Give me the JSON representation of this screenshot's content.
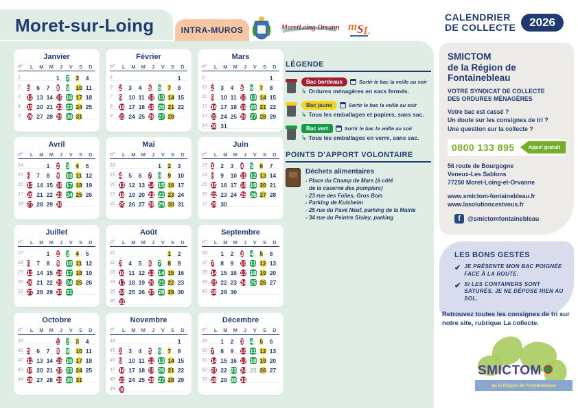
{
  "colors": {
    "navy": "#203a6f",
    "mint": "#dfede5",
    "bordeaux": "#9e1f35",
    "green": "#169c46",
    "yellow": "#f5d41f",
    "peach": "#f7c6a3",
    "lime": "#74ad27"
  },
  "header": {
    "city": "Moret-sur-Loing",
    "zone": "INTRA-MUROS"
  },
  "calendar": {
    "weekday_header": [
      "n°",
      "L",
      "M",
      "M",
      "J",
      "V",
      "S",
      "D"
    ],
    "months": [
      {
        "name": "Janvier",
        "weeks": [
          {
            "n": 1,
            "d": [
              "",
              "",
              "",
              "1",
              "2 g",
              "3 y",
              "4"
            ]
          },
          {
            "n": 2,
            "d": [
              "5 r",
              "6",
              "7",
              "8 r",
              "9 g",
              "10 y",
              "11"
            ]
          },
          {
            "n": 3,
            "d": [
              "12 r",
              "13",
              "14",
              "15 r",
              "16 g",
              "17 y",
              "18"
            ]
          },
          {
            "n": 4,
            "d": [
              "19 r",
              "20",
              "21",
              "22 r",
              "23 g",
              "24 y",
              "25"
            ]
          },
          {
            "n": 5,
            "d": [
              "26 r",
              "27",
              "28",
              "29 r",
              "30 g",
              "31 y",
              ""
            ]
          }
        ]
      },
      {
        "name": "Février",
        "weeks": [
          {
            "n": 5,
            "d": [
              "",
              "",
              "",
              "",
              "",
              "",
              "1"
            ]
          },
          {
            "n": 6,
            "d": [
              "2 r",
              "3",
              "4",
              "5 r",
              "6 g",
              "7 y",
              "8"
            ]
          },
          {
            "n": 7,
            "d": [
              "9 r",
              "10",
              "11",
              "12 r",
              "13 g",
              "14 y",
              "15"
            ]
          },
          {
            "n": 8,
            "d": [
              "16 r",
              "17",
              "18",
              "19 r",
              "20 g",
              "21 y",
              "22"
            ]
          },
          {
            "n": 9,
            "d": [
              "23 r",
              "24",
              "25",
              "26 r",
              "27 g",
              "28 y",
              ""
            ]
          }
        ]
      },
      {
        "name": "Mars",
        "weeks": [
          {
            "n": 9,
            "d": [
              "",
              "",
              "",
              "",
              "",
              "",
              "1"
            ]
          },
          {
            "n": 10,
            "d": [
              "2 r",
              "3",
              "4",
              "5 r",
              "6 g",
              "7 y",
              "8"
            ]
          },
          {
            "n": 11,
            "d": [
              "9 r",
              "10",
              "11",
              "12 r",
              "13 g",
              "14 y",
              "15"
            ]
          },
          {
            "n": 12,
            "d": [
              "16 r",
              "17",
              "18",
              "19 r",
              "20 g",
              "21 y",
              "22"
            ]
          },
          {
            "n": 13,
            "d": [
              "23 r",
              "24",
              "25",
              "26 r",
              "27 g",
              "28 y",
              "29"
            ]
          },
          {
            "n": 14,
            "d": [
              "30 r",
              "31",
              "",
              "",
              "",
              "",
              ""
            ]
          }
        ]
      },
      {
        "name": "Avril",
        "weeks": [
          {
            "n": 14,
            "d": [
              "",
              "",
              "1",
              "2 r",
              "3 g",
              "4 y",
              "5"
            ]
          },
          {
            "n": 15,
            "d": [
              "6 r",
              "7",
              "8",
              "9 r",
              "10 g",
              "11 y",
              "12"
            ]
          },
          {
            "n": 16,
            "d": [
              "13 r",
              "14",
              "15",
              "16 r",
              "17 g",
              "18 y",
              "19"
            ]
          },
          {
            "n": 17,
            "d": [
              "20 r",
              "21",
              "22",
              "23 r",
              "24 g",
              "25 y",
              "26"
            ]
          },
          {
            "n": 18,
            "d": [
              "27 r",
              "28",
              "29",
              "30 r",
              "",
              "",
              ""
            ]
          }
        ]
      },
      {
        "name": "Mai",
        "weeks": [
          {
            "n": 18,
            "d": [
              "",
              "",
              "",
              "",
              "1",
              "2 y",
              "3"
            ]
          },
          {
            "n": 19,
            "d": [
              "4 r",
              "5",
              "6",
              "7 r",
              "8 g",
              "9 y",
              "10"
            ]
          },
          {
            "n": 20,
            "d": [
              "11 r",
              "12",
              "13",
              "14 r",
              "15 g",
              "16 y",
              "17"
            ]
          },
          {
            "n": 21,
            "d": [
              "18 r",
              "19",
              "20",
              "21 r",
              "22 g",
              "23 y",
              "24"
            ]
          },
          {
            "n": 22,
            "d": [
              "25 r",
              "26",
              "27",
              "28 r",
              "29 g",
              "30 y",
              "31"
            ]
          }
        ]
      },
      {
        "name": "Juin",
        "weeks": [
          {
            "n": 23,
            "d": [
              "1 r",
              "2",
              "3",
              "4 r",
              "5 g",
              "6 y",
              "7"
            ]
          },
          {
            "n": 24,
            "d": [
              "8 r",
              "9",
              "10",
              "11 r",
              "12 g",
              "13 y",
              "14"
            ]
          },
          {
            "n": 25,
            "d": [
              "15 r",
              "16",
              "17",
              "18 r",
              "19 g",
              "20 y",
              "21"
            ]
          },
          {
            "n": 26,
            "d": [
              "22 r",
              "23",
              "24",
              "25 r",
              "26 g",
              "27 y",
              "28"
            ]
          },
          {
            "n": 27,
            "d": [
              "29 r",
              "30",
              "",
              "",
              "",
              "",
              ""
            ]
          }
        ]
      },
      {
        "name": "Juillet",
        "weeks": [
          {
            "n": 27,
            "d": [
              "",
              "",
              "1",
              "2 r",
              "3 g",
              "4 y",
              "5"
            ]
          },
          {
            "n": 28,
            "d": [
              "6 r",
              "7",
              "8",
              "9 r",
              "10 g",
              "11 y",
              "12"
            ]
          },
          {
            "n": 29,
            "d": [
              "13 r",
              "14",
              "15",
              "16 r",
              "17 g",
              "18 y",
              "19"
            ]
          },
          {
            "n": 30,
            "d": [
              "20 r",
              "21",
              "22",
              "23 r",
              "24 g",
              "25 y",
              "26"
            ]
          },
          {
            "n": 31,
            "d": [
              "27 r",
              "28",
              "29",
              "30 r",
              "31 g",
              "",
              ""
            ]
          }
        ]
      },
      {
        "name": "Août",
        "weeks": [
          {
            "n": 31,
            "d": [
              "",
              "",
              "",
              "",
              "",
              "1 y",
              "2"
            ]
          },
          {
            "n": 32,
            "d": [
              "3 r",
              "4",
              "5",
              "6 r",
              "7 g",
              "8 y",
              "9"
            ]
          },
          {
            "n": 33,
            "d": [
              "10 r",
              "11",
              "12",
              "13 r",
              "14 g",
              "15 y",
              "16"
            ]
          },
          {
            "n": 34,
            "d": [
              "17 r",
              "18",
              "19",
              "20 r",
              "21 g",
              "22 y",
              "23"
            ]
          },
          {
            "n": 35,
            "d": [
              "24 r",
              "25",
              "26",
              "27 r",
              "28 g",
              "29 y",
              "30"
            ]
          },
          {
            "n": 36,
            "d": [
              "31 r",
              "",
              "",
              "",
              "",
              "",
              ""
            ]
          }
        ]
      },
      {
        "name": "Septembre",
        "weeks": [
          {
            "n": 36,
            "d": [
              "",
              "1",
              "2",
              "3 r",
              "4 g",
              "5 y",
              "6"
            ]
          },
          {
            "n": 37,
            "d": [
              "7 r",
              "8",
              "9",
              "10 r",
              "11 g",
              "12 y",
              "13"
            ]
          },
          {
            "n": 38,
            "d": [
              "14 r",
              "15",
              "16",
              "17 r",
              "18 g",
              "19 y",
              "20"
            ]
          },
          {
            "n": 39,
            "d": [
              "21 r",
              "22",
              "23",
              "24 r",
              "25 g",
              "26 y",
              "27"
            ]
          },
          {
            "n": 40,
            "d": [
              "28 r",
              "29",
              "30",
              "",
              "",
              "",
              ""
            ]
          }
        ]
      },
      {
        "name": "Octobre",
        "weeks": [
          {
            "n": 40,
            "d": [
              "",
              "",
              "",
              "1 r",
              "2 g",
              "3 y",
              "4"
            ]
          },
          {
            "n": 41,
            "d": [
              "5 r",
              "6",
              "7",
              "8 r",
              "9 g",
              "10 y",
              "11"
            ]
          },
          {
            "n": 42,
            "d": [
              "12 r",
              "13",
              "14",
              "15 r",
              "16 g",
              "17 y",
              "18"
            ]
          },
          {
            "n": 43,
            "d": [
              "19 r",
              "20",
              "21",
              "22 r",
              "23 g",
              "24 y",
              "25"
            ]
          },
          {
            "n": 44,
            "d": [
              "26 r",
              "27",
              "28",
              "29 r",
              "30 g",
              "31 y",
              ""
            ]
          }
        ]
      },
      {
        "name": "Novembre",
        "weeks": [
          {
            "n": 44,
            "d": [
              "",
              "",
              "",
              "",
              "",
              "",
              "1"
            ]
          },
          {
            "n": 45,
            "d": [
              "2 r",
              "3",
              "4",
              "5 r",
              "6 g",
              "7 y",
              "8"
            ]
          },
          {
            "n": 46,
            "d": [
              "9 r",
              "10",
              "11",
              "12 r",
              "13 g",
              "14 y",
              "15"
            ]
          },
          {
            "n": 47,
            "d": [
              "16 r",
              "17",
              "18",
              "19 r",
              "20 g",
              "21 y",
              "22"
            ]
          },
          {
            "n": 48,
            "d": [
              "23 r",
              "24",
              "25",
              "26 r",
              "27 g",
              "28 y",
              "29"
            ]
          },
          {
            "n": 49,
            "d": [
              "30 r",
              "",
              "",
              "",
              "",
              "",
              ""
            ]
          }
        ]
      },
      {
        "name": "Décembre",
        "weeks": [
          {
            "n": 49,
            "d": [
              "",
              "1",
              "2",
              "3 r",
              "4 g",
              "5 y",
              "6"
            ]
          },
          {
            "n": 50,
            "d": [
              "7 r",
              "8",
              "9",
              "10 r",
              "11 g",
              "12 y",
              "13"
            ]
          },
          {
            "n": 51,
            "d": [
              "14 r",
              "15",
              "16",
              "17 r",
              "18 g",
              "19 y",
              "20"
            ]
          },
          {
            "n": 52,
            "d": [
              "21 r",
              "22",
              "23 g",
              "24 r",
              "25 m",
              "26 y",
              "27"
            ]
          },
          {
            "n": 53,
            "d": [
              "28 r",
              "29",
              "30 g",
              "31 r",
              "",
              "",
              ""
            ]
          }
        ]
      }
    ]
  },
  "legend": {
    "title": "LÉGENDE",
    "reminder": "Sortir le bac la veille au soir",
    "items": [
      {
        "pill": "Bac bordeaux",
        "color": "#9e1f35",
        "desc": "Ordures ménagères en sacs fermés."
      },
      {
        "pill": "Bac jaune",
        "color": "#f5d41f",
        "desc": "Tous les emballages et papiers, sans sac."
      },
      {
        "pill": "Bac vert",
        "color": "#169c46",
        "desc": "Tous les emballages en verre, sans sac."
      }
    ]
  },
  "apport": {
    "title": "POINTS D’APPORT VOLONTAIRE",
    "subtitle": "Déchets alimentaires",
    "locations": [
      "- Place du Champ de Mars (à côté",
      "  de la caserne des pompiers)",
      "- 23 rue des Folies, Gros Bois",
      "- Parking de Kulsheim",
      "- 25 rue du Pavé Neuf, parking de la Mairie",
      "- 34 rue du Peintre Sisley, parking"
    ]
  },
  "sidebar": {
    "title_line1": "CALENDRIER",
    "title_line2": "DE COLLECTE",
    "year": "2026",
    "org_name": "SMICTOM\nde la Région de\nFontainebleau",
    "role_line1": "VOTRE SYNDICAT DE COLLECTE",
    "role_line2": "DES ORDURES MÉNAGÈRES",
    "questions": [
      "Votre bac est cassé ?",
      "Un doute sur les consignes de tri ?",
      "Une question sur la collecte ?"
    ],
    "phone": {
      "number": "0800 133 895",
      "label": "Appel gratuit"
    },
    "address": [
      "56 route de Bourgogne",
      "Veneux-Les Sablons",
      "77250 Moret-Loing-et-Orvanne"
    ],
    "websites": [
      "www.smictom-fontainebleau.fr",
      "www.lasolutioncestvous.fr"
    ],
    "facebook": "@smictomfontainebleau",
    "bons_gestes": {
      "title": "LES BONS GESTES",
      "items": [
        "JE PRÉSENTE MON BAC POIGNÉE FACE À LA ROUTE.",
        "SI LES CONTAINERS SONT SATURÉS, JE NE DÉPOSE RIEN AU SOL."
      ]
    },
    "footer_note": "Retrouvez toutes les consignes de tri sur notre site, rubrique La collecte.",
    "logo": {
      "name": "SMICTOM",
      "tagline": "de la Région de Fontainebleau"
    }
  }
}
